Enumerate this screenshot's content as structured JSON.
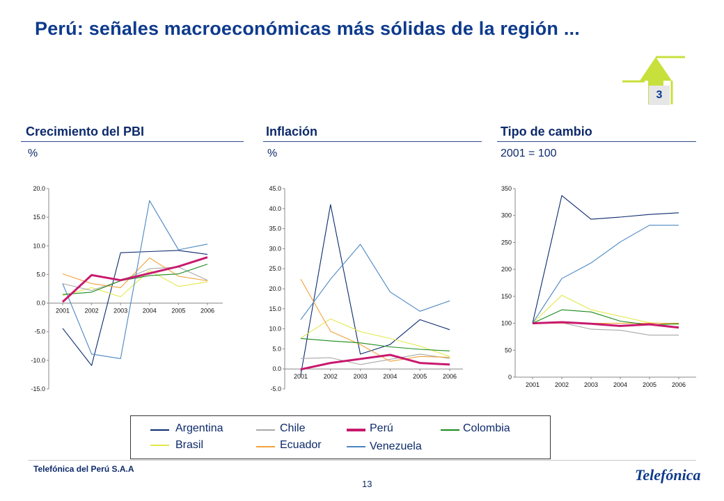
{
  "slide": {
    "title": "Perú: señales macroeconómicas más sólidas de la región ...",
    "badge": "3",
    "company": "Telefónica del Perú S.A.A",
    "page_number": "13",
    "logo_text": "Telefónica"
  },
  "colors": {
    "Argentina": "#0b2a6e",
    "Brasil": "#e2e84a",
    "Chile": "#a8a8a8",
    "Ecuador": "#f2a23a",
    "Perú": "#c8196e",
    "Venezuela": "#4a86c0",
    "Colombia": "#1a8a1a",
    "badge_arrow": "#c8e03c"
  },
  "legend": {
    "items": [
      "Argentina",
      "Chile",
      "Perú",
      "Colombia",
      "Brasil",
      "Ecuador",
      "Venezuela"
    ]
  },
  "chart_data": [
    {
      "type": "line",
      "title": "Crecimiento del PBI",
      "unit": "%",
      "x": [
        "2001",
        "2002",
        "2003",
        "2004",
        "2005",
        "2006"
      ],
      "ylim": [
        -15,
        20
      ],
      "yticks": [
        "20.0",
        "15.0",
        "10.0",
        "5.0",
        "0.0",
        "-5.0",
        "-10.0",
        "-15.0"
      ],
      "series": [
        {
          "name": "Argentina",
          "values": [
            -4.4,
            -10.9,
            8.8,
            9.0,
            9.2,
            8.5
          ]
        },
        {
          "name": "Brasil",
          "values": [
            1.3,
            2.7,
            1.1,
            5.7,
            2.9,
            3.7
          ]
        },
        {
          "name": "Chile",
          "values": [
            3.4,
            2.2,
            3.9,
            6.0,
            6.3,
            4.0
          ]
        },
        {
          "name": "Ecuador",
          "values": [
            5.1,
            3.4,
            2.7,
            7.9,
            4.7,
            3.9
          ]
        },
        {
          "name": "Colombia",
          "values": [
            1.5,
            1.9,
            3.9,
            4.8,
            5.1,
            6.8
          ]
        },
        {
          "name": "Venezuela",
          "values": [
            3.4,
            -8.9,
            -9.7,
            17.9,
            9.3,
            10.3
          ]
        },
        {
          "name": "Perú",
          "values": [
            0.2,
            4.9,
            4.0,
            5.2,
            6.4,
            8.0
          ]
        }
      ]
    },
    {
      "type": "line",
      "title": "Inflación",
      "unit": "%",
      "x": [
        "2001",
        "2002",
        "2003",
        "2004",
        "2005",
        "2006"
      ],
      "ylim": [
        -5,
        45
      ],
      "yticks": [
        "45.0",
        "40.0",
        "35.0",
        "30.0",
        "25.0",
        "20.0",
        "15.0",
        "10.0",
        "5.0",
        "0.0",
        "-5.0"
      ],
      "series": [
        {
          "name": "Argentina",
          "values": [
            -1.5,
            41.0,
            3.7,
            6.1,
            12.3,
            9.8
          ]
        },
        {
          "name": "Brasil",
          "values": [
            7.7,
            12.5,
            9.3,
            7.6,
            5.7,
            3.1
          ]
        },
        {
          "name": "Chile",
          "values": [
            2.6,
            2.8,
            1.1,
            2.4,
            3.7,
            2.6
          ]
        },
        {
          "name": "Ecuador",
          "values": [
            22.4,
            9.4,
            6.1,
            1.9,
            3.1,
            2.9
          ]
        },
        {
          "name": "Colombia",
          "values": [
            7.6,
            7.0,
            6.5,
            5.5,
            4.9,
            4.5
          ]
        },
        {
          "name": "Venezuela",
          "values": [
            12.3,
            22.4,
            31.1,
            19.2,
            14.4,
            17.0
          ]
        },
        {
          "name": "Perú",
          "values": [
            -0.1,
            1.5,
            2.5,
            3.5,
            1.5,
            1.1
          ]
        }
      ]
    },
    {
      "type": "line",
      "title": "Tipo de cambio",
      "unit": "2001 = 100",
      "x": [
        "2001",
        "2002",
        "2003",
        "2004",
        "2005",
        "2006"
      ],
      "ylim": [
        0,
        350
      ],
      "yticks": [
        "350",
        "300",
        "250",
        "200",
        "150",
        "100",
        "50",
        "0"
      ],
      "series": [
        {
          "name": "Argentina",
          "values": [
            100,
            337,
            293,
            297,
            302,
            305
          ]
        },
        {
          "name": "Brasil",
          "values": [
            100,
            152,
            125,
            113,
            101,
            98
          ]
        },
        {
          "name": "Chile",
          "values": [
            100,
            101,
            89,
            87,
            78,
            78
          ]
        },
        {
          "name": "Ecuador",
          "values": [
            100,
            100,
            100,
            100,
            100,
            100
          ]
        },
        {
          "name": "Colombia",
          "values": [
            100,
            125,
            121,
            104,
            97,
            99
          ]
        },
        {
          "name": "Venezuela",
          "values": [
            100,
            183,
            212,
            251,
            282,
            282
          ]
        },
        {
          "name": "Perú",
          "values": [
            100,
            102,
            99,
            95,
            98,
            92
          ]
        }
      ]
    }
  ]
}
